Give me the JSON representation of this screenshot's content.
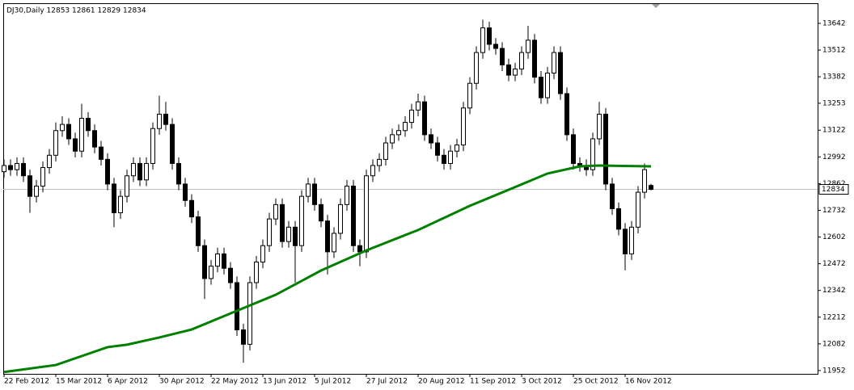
{
  "chart_data": {
    "type": "candlestick",
    "title": "DJ30,Daily  12853 12861 12829 12834",
    "up_color": "#ffffff",
    "down_color": "#000000",
    "edge_color": "#000000",
    "ylim": [
      11936,
      13740
    ],
    "yticks": [
      13642,
      13512,
      13382,
      13253,
      13122,
      12992,
      12862,
      12732,
      12602,
      12472,
      12342,
      12212,
      12082,
      11952
    ],
    "xlim": [
      0,
      100
    ],
    "xticks": [
      {
        "value": 0,
        "label": "22 Feb 2012"
      },
      {
        "value": 8,
        "label": "15 Mar 2012"
      },
      {
        "value": 16,
        "label": "6 Apr 2012"
      },
      {
        "value": 24,
        "label": "30 Apr 2012"
      },
      {
        "value": 32,
        "label": "22 May 2012"
      },
      {
        "value": 40,
        "label": "13 Jun 2012"
      },
      {
        "value": 48,
        "label": "5 Jul 2012"
      },
      {
        "value": 56,
        "label": "27 Jul 2012"
      },
      {
        "value": 64,
        "label": "20 Aug 2012"
      },
      {
        "value": 72,
        "label": "11 Sep 2012"
      },
      {
        "value": 80,
        "label": "3 Oct 2012"
      },
      {
        "value": 88,
        "label": "25 Oct 2012"
      },
      {
        "value": 96,
        "label": "16 Nov 2012"
      }
    ],
    "last_price": 12834,
    "moving_average": {
      "color": "#007f00",
      "x": [
        0,
        8,
        16,
        19,
        24,
        29,
        36,
        42,
        49,
        56,
        64,
        72,
        78,
        84,
        89,
        92,
        100
      ],
      "values": [
        11945,
        11979,
        12066,
        12078,
        12113,
        12152,
        12243,
        12321,
        12439,
        12537,
        12636,
        12754,
        12832,
        12911,
        12946,
        12950,
        12946
      ]
    },
    "candles": [
      [
        12920,
        12980,
        12890,
        12950
      ],
      [
        12950,
        12980,
        12900,
        12930
      ],
      [
        12930,
        12990,
        12900,
        12960
      ],
      [
        12960,
        12990,
        12870,
        12900
      ],
      [
        12900,
        12930,
        12720,
        12800
      ],
      [
        12800,
        12880,
        12770,
        12850
      ],
      [
        12850,
        12970,
        12820,
        12940
      ],
      [
        12940,
        13030,
        12910,
        13000
      ],
      [
        13000,
        13160,
        12970,
        13120
      ],
      [
        13120,
        13190,
        13090,
        13150
      ],
      [
        13150,
        13180,
        13050,
        13080
      ],
      [
        13080,
        13110,
        12990,
        13020
      ],
      [
        13020,
        13250,
        12990,
        13180
      ],
      [
        13180,
        13210,
        13090,
        13120
      ],
      [
        13120,
        13150,
        13010,
        13040
      ],
      [
        13040,
        13070,
        12950,
        12980
      ],
      [
        12980,
        13010,
        12830,
        12860
      ],
      [
        12860,
        12890,
        12650,
        12720
      ],
      [
        12720,
        12830,
        12690,
        12800
      ],
      [
        12800,
        12930,
        12770,
        12900
      ],
      [
        12900,
        12990,
        12870,
        12960
      ],
      [
        12960,
        12990,
        12850,
        12880
      ],
      [
        12880,
        12990,
        12850,
        12960
      ],
      [
        12960,
        13160,
        12930,
        13130
      ],
      [
        13130,
        13290,
        13100,
        13200
      ],
      [
        13200,
        13260,
        13120,
        13150
      ],
      [
        13150,
        13180,
        12930,
        12960
      ],
      [
        12960,
        12990,
        12830,
        12860
      ],
      [
        12860,
        12890,
        12750,
        12780
      ],
      [
        12780,
        12810,
        12670,
        12700
      ],
      [
        12700,
        12730,
        12530,
        12560
      ],
      [
        12560,
        12590,
        12300,
        12400
      ],
      [
        12400,
        12490,
        12370,
        12460
      ],
      [
        12460,
        12550,
        12430,
        12520
      ],
      [
        12520,
        12550,
        12420,
        12450
      ],
      [
        12450,
        12480,
        12350,
        12380
      ],
      [
        12380,
        12410,
        12120,
        12150
      ],
      [
        12150,
        12180,
        11990,
        12080
      ],
      [
        12080,
        12410,
        12050,
        12380
      ],
      [
        12380,
        12510,
        12350,
        12480
      ],
      [
        12480,
        12590,
        12450,
        12560
      ],
      [
        12560,
        12720,
        12530,
        12690
      ],
      [
        12690,
        12790,
        12660,
        12760
      ],
      [
        12760,
        12790,
        12550,
        12580
      ],
      [
        12580,
        12680,
        12550,
        12650
      ],
      [
        12650,
        12680,
        12380,
        12560
      ],
      [
        12560,
        12830,
        12530,
        12800
      ],
      [
        12800,
        12890,
        12770,
        12860
      ],
      [
        12860,
        12890,
        12730,
        12760
      ],
      [
        12760,
        12790,
        12650,
        12680
      ],
      [
        12680,
        12710,
        12420,
        12530
      ],
      [
        12530,
        12650,
        12500,
        12620
      ],
      [
        12620,
        12790,
        12590,
        12760
      ],
      [
        12760,
        12880,
        12730,
        12850
      ],
      [
        12850,
        12880,
        12530,
        12560
      ],
      [
        12560,
        12590,
        12460,
        12530
      ],
      [
        12530,
        12930,
        12500,
        12900
      ],
      [
        12900,
        12980,
        12870,
        12950
      ],
      [
        12950,
        13010,
        12920,
        12980
      ],
      [
        12980,
        13090,
        12950,
        13060
      ],
      [
        13060,
        13130,
        13030,
        13100
      ],
      [
        13100,
        13150,
        13070,
        13120
      ],
      [
        13120,
        13190,
        13090,
        13160
      ],
      [
        13160,
        13250,
        13130,
        13220
      ],
      [
        13220,
        13300,
        13190,
        13260
      ],
      [
        13260,
        13290,
        13070,
        13100
      ],
      [
        13100,
        13130,
        13030,
        13060
      ],
      [
        13060,
        13090,
        12970,
        13000
      ],
      [
        13000,
        13030,
        12930,
        12960
      ],
      [
        12960,
        13050,
        12930,
        13020
      ],
      [
        13020,
        13080,
        12990,
        13050
      ],
      [
        13050,
        13260,
        13020,
        13230
      ],
      [
        13230,
        13380,
        13200,
        13350
      ],
      [
        13350,
        13530,
        13320,
        13500
      ],
      [
        13500,
        13660,
        13470,
        13620
      ],
      [
        13620,
        13650,
        13510,
        13540
      ],
      [
        13540,
        13570,
        13490,
        13520
      ],
      [
        13520,
        13550,
        13410,
        13440
      ],
      [
        13440,
        13470,
        13360,
        13390
      ],
      [
        13390,
        13450,
        13360,
        13420
      ],
      [
        13420,
        13530,
        13390,
        13500
      ],
      [
        13500,
        13630,
        13470,
        13560
      ],
      [
        13560,
        13590,
        13350,
        13380
      ],
      [
        13380,
        13410,
        13250,
        13280
      ],
      [
        13280,
        13430,
        13250,
        13400
      ],
      [
        13400,
        13530,
        13370,
        13500
      ],
      [
        13500,
        13530,
        13270,
        13300
      ],
      [
        13300,
        13330,
        13070,
        13100
      ],
      [
        13100,
        13130,
        12930,
        12960
      ],
      [
        12960,
        12990,
        12920,
        12950
      ],
      [
        12950,
        12980,
        12900,
        12930
      ],
      [
        12930,
        13110,
        12900,
        13080
      ],
      [
        13080,
        13260,
        13050,
        13200
      ],
      [
        13200,
        13230,
        12830,
        12860
      ],
      [
        12860,
        12890,
        12710,
        12740
      ],
      [
        12740,
        12770,
        12610,
        12640
      ],
      [
        12640,
        12670,
        12440,
        12520
      ],
      [
        12520,
        12680,
        12490,
        12650
      ],
      [
        12650,
        12850,
        12620,
        12820
      ],
      [
        12820,
        12960,
        12790,
        12930
      ],
      [
        12853,
        12861,
        12829,
        12834
      ]
    ]
  }
}
